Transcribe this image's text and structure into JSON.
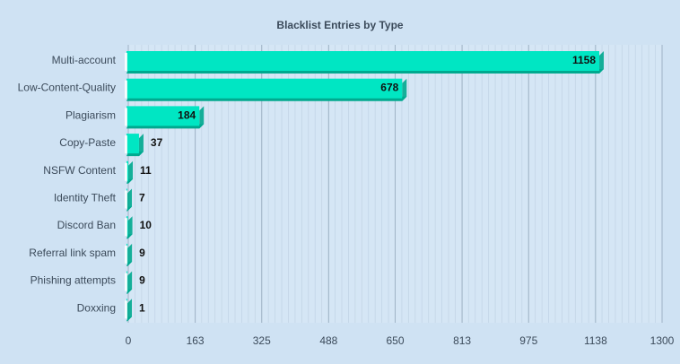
{
  "chart_data": {
    "type": "bar",
    "orientation": "horizontal",
    "title": "Blacklist Entries by Type",
    "xlabel": "",
    "ylabel": "",
    "categories": [
      "Multi-account",
      "Low-Content-Quality",
      "Plagiarism",
      "Copy-Paste",
      "NSFW Content",
      "Identity Theft",
      "Discord Ban",
      "Referral link spam",
      "Phishing attempts",
      "Doxxing"
    ],
    "values": [
      1158,
      678,
      184,
      37,
      11,
      7,
      10,
      9,
      9,
      1
    ],
    "xlim": [
      0,
      1300
    ],
    "xticks": [
      "0",
      "163",
      "325",
      "488",
      "650",
      "813",
      "975",
      "1138",
      "1300"
    ],
    "grid": true,
    "legend": "none",
    "bar_color": "#00e6c3",
    "bar_shadow_color": "#00a98f"
  }
}
